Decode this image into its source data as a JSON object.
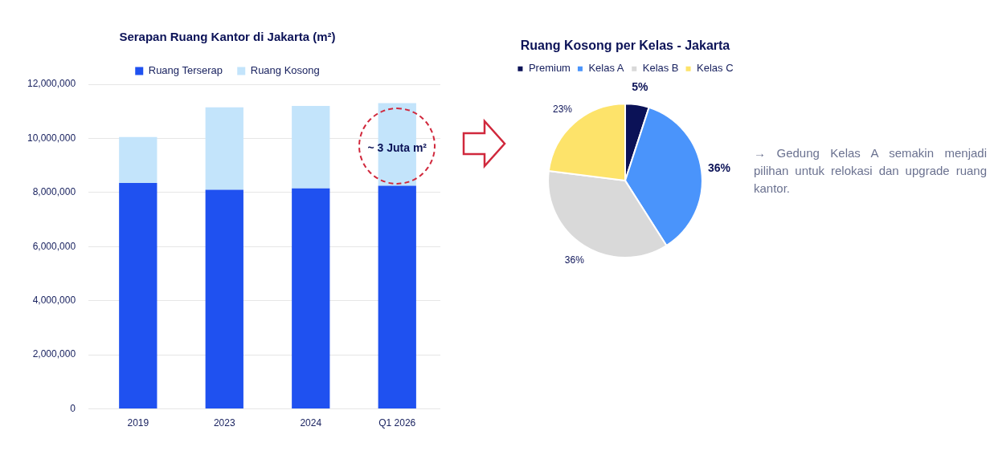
{
  "chart_data": [
    {
      "type": "bar",
      "title": "Serapan Ruang Kantor di Jakarta (m²)",
      "categories": [
        "2019",
        "2023",
        "2024",
        "Q1 2026"
      ],
      "stacked": true,
      "series": [
        {
          "name": "Ruang Terserap",
          "color": "#1f51f0",
          "values": [
            8350000,
            8100000,
            8150000,
            8250000
          ]
        },
        {
          "name": "Ruang Kosong",
          "color": "#c3e4fb",
          "values": [
            1700000,
            3050000,
            3050000,
            3050000
          ]
        }
      ],
      "ylim": [
        0,
        12000000
      ],
      "yticks": [
        {
          "value": 0,
          "label": "0"
        },
        {
          "value": 2000000,
          "label": "2,000,000"
        },
        {
          "value": 4000000,
          "label": "4,000,000"
        },
        {
          "value": 6000000,
          "label": "6,000,000"
        },
        {
          "value": 8000000,
          "label": "8,000,000"
        },
        {
          "value": 10000000,
          "label": "10,000,000"
        },
        {
          "value": 12000000,
          "label": "12,000,000"
        }
      ],
      "grid": "y",
      "legend": "top",
      "annotations": [
        "~ 3 Juta m²"
      ]
    },
    {
      "type": "pie",
      "title": "Ruang Kosong per Kelas - Jakarta",
      "categories": [
        "Premium",
        "Kelas A",
        "Kelas B",
        "Kelas C"
      ],
      "values": [
        5,
        36,
        36,
        23
      ],
      "colors": [
        "#0b1257",
        "#4a94fb",
        "#d9d9d9",
        "#fde36a"
      ],
      "value_labels": [
        "5%",
        "36%",
        "36%",
        "23%"
      ],
      "legend": "top",
      "annotations": [
        "→ Gedung Kelas A semakin menjadi pilihan untuk relokasi dan upgrade ruang kantor."
      ]
    }
  ]
}
